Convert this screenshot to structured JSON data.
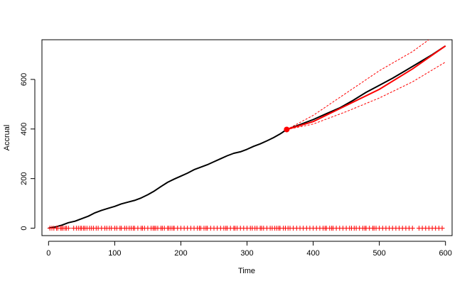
{
  "chart_data": {
    "type": "line",
    "title": "",
    "xlabel": "Time",
    "ylabel": "Accrual",
    "xlim": [
      -10,
      610
    ],
    "ylim": [
      -30,
      760
    ],
    "xticks": [
      0,
      100,
      200,
      300,
      400,
      500,
      600
    ],
    "yticks": [
      0,
      200,
      400,
      600
    ],
    "grid": false,
    "legend": "none",
    "colors": {
      "observed": "#000000",
      "prediction": "#ff0000"
    },
    "current_point": {
      "x": 360,
      "y": 398
    },
    "series": [
      {
        "role": "observed",
        "x": [
          0,
          10,
          20,
          30,
          40,
          50,
          60,
          70,
          80,
          90,
          100,
          110,
          120,
          130,
          140,
          150,
          160,
          170,
          180,
          190,
          200,
          210,
          220,
          230,
          240,
          250,
          260,
          270,
          280,
          290,
          300,
          310,
          320,
          330,
          340,
          350,
          360
        ],
        "y": [
          0,
          5,
          12,
          22,
          28,
          38,
          48,
          62,
          72,
          80,
          88,
          98,
          105,
          112,
          122,
          135,
          150,
          168,
          185,
          198,
          210,
          222,
          236,
          246,
          256,
          268,
          280,
          292,
          302,
          308,
          318,
          330,
          340,
          352,
          365,
          380,
          398
        ]
      },
      {
        "role": "observed-future",
        "x": [
          360,
          380,
          400,
          420,
          440,
          460,
          480,
          500,
          520,
          540,
          560,
          580,
          600
        ],
        "y": [
          398,
          418,
          438,
          462,
          485,
          515,
          548,
          576,
          605,
          636,
          668,
          700,
          735
        ]
      },
      {
        "role": "predicted",
        "x": [
          360,
          400,
          450,
          500,
          550,
          600
        ],
        "y": [
          398,
          430,
          495,
          560,
          642,
          735
        ]
      },
      {
        "role": "upper-bound",
        "x": [
          360,
          400,
          450,
          500,
          550,
          580
        ],
        "y": [
          398,
          455,
          545,
          635,
          712,
          770
        ]
      },
      {
        "role": "lower-bound",
        "x": [
          360,
          400,
          450,
          500,
          550,
          600
        ],
        "y": [
          398,
          420,
          470,
          525,
          590,
          670
        ]
      }
    ],
    "event_marks": {
      "y": 0,
      "x": [
        2,
        5,
        8,
        12,
        14,
        18,
        20,
        22,
        25,
        27,
        30,
        38,
        42,
        45,
        48,
        50,
        53,
        55,
        58,
        62,
        65,
        68,
        72,
        75,
        80,
        85,
        88,
        92,
        95,
        100,
        103,
        108,
        110,
        115,
        118,
        122,
        125,
        128,
        130,
        135,
        140,
        142,
        145,
        150,
        155,
        158,
        160,
        162,
        165,
        170,
        172,
        175,
        180,
        182,
        185,
        188,
        190,
        195,
        200,
        205,
        210,
        215,
        220,
        225,
        228,
        230,
        235,
        238,
        240,
        245,
        250,
        255,
        260,
        265,
        268,
        270,
        275,
        280,
        282,
        285,
        290,
        295,
        300,
        305,
        308,
        312,
        315,
        320,
        322,
        325,
        330,
        335,
        338,
        342,
        345,
        348,
        350,
        355,
        358,
        362,
        365,
        370,
        375,
        380,
        385,
        390,
        395,
        400,
        405,
        410,
        415,
        418,
        420,
        425,
        428,
        430,
        435,
        440,
        445,
        450,
        455,
        458,
        462,
        465,
        470,
        475,
        478,
        480,
        485,
        490,
        492,
        495,
        500,
        505,
        510,
        515,
        520,
        525,
        530,
        535,
        540,
        545,
        550,
        560,
        565,
        570,
        575,
        580,
        585,
        590,
        595
      ]
    }
  }
}
